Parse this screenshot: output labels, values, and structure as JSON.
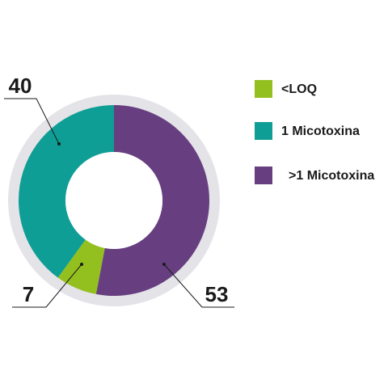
{
  "chart_data": {
    "type": "donut",
    "categories": [
      "<LOQ",
      "1 Micotoxina",
      ">1 Micotoxina"
    ],
    "values": [
      7,
      40,
      53
    ],
    "colors": [
      "#93c01f",
      "#0f9e95",
      "#673f80"
    ]
  }
}
